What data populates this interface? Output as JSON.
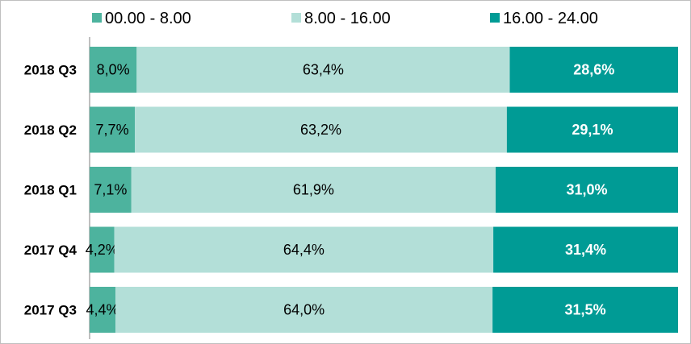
{
  "chart_data": {
    "type": "bar",
    "orientation": "horizontal",
    "stacked": "100%",
    "title": "",
    "xlabel": "",
    "ylabel": "",
    "categories": [
      "2018 Q3",
      "2018 Q2",
      "2018 Q1",
      "2017 Q4",
      "2017 Q3"
    ],
    "series": [
      {
        "name": "00.00 - 8.00",
        "color": "#4db39e",
        "values": [
          8.0,
          7.7,
          7.1,
          4.2,
          4.4
        ],
        "labels": [
          "8,0%",
          "7,7%",
          "7,1%",
          "4,2%",
          "4,4%"
        ],
        "label_color": "#000000",
        "label_weight": "normal"
      },
      {
        "name": "8.00 - 16.00",
        "color": "#b3dfd8",
        "values": [
          63.4,
          63.2,
          61.9,
          64.4,
          64.0
        ],
        "labels": [
          "63,4%",
          "63,2%",
          "61,9%",
          "64,4%",
          "64,0%"
        ],
        "label_color": "#000000",
        "label_weight": "normal"
      },
      {
        "name": "16.00 - 24.00",
        "color": "#009b95",
        "values": [
          28.6,
          29.1,
          31.0,
          31.4,
          31.5
        ],
        "labels": [
          "28,6%",
          "29,1%",
          "31,0%",
          "31,4%",
          "31,5%"
        ],
        "label_color": "#ffffff",
        "label_weight": "bold"
      }
    ],
    "xlim": [
      0,
      100
    ],
    "grid": false,
    "legend_position": "top"
  }
}
